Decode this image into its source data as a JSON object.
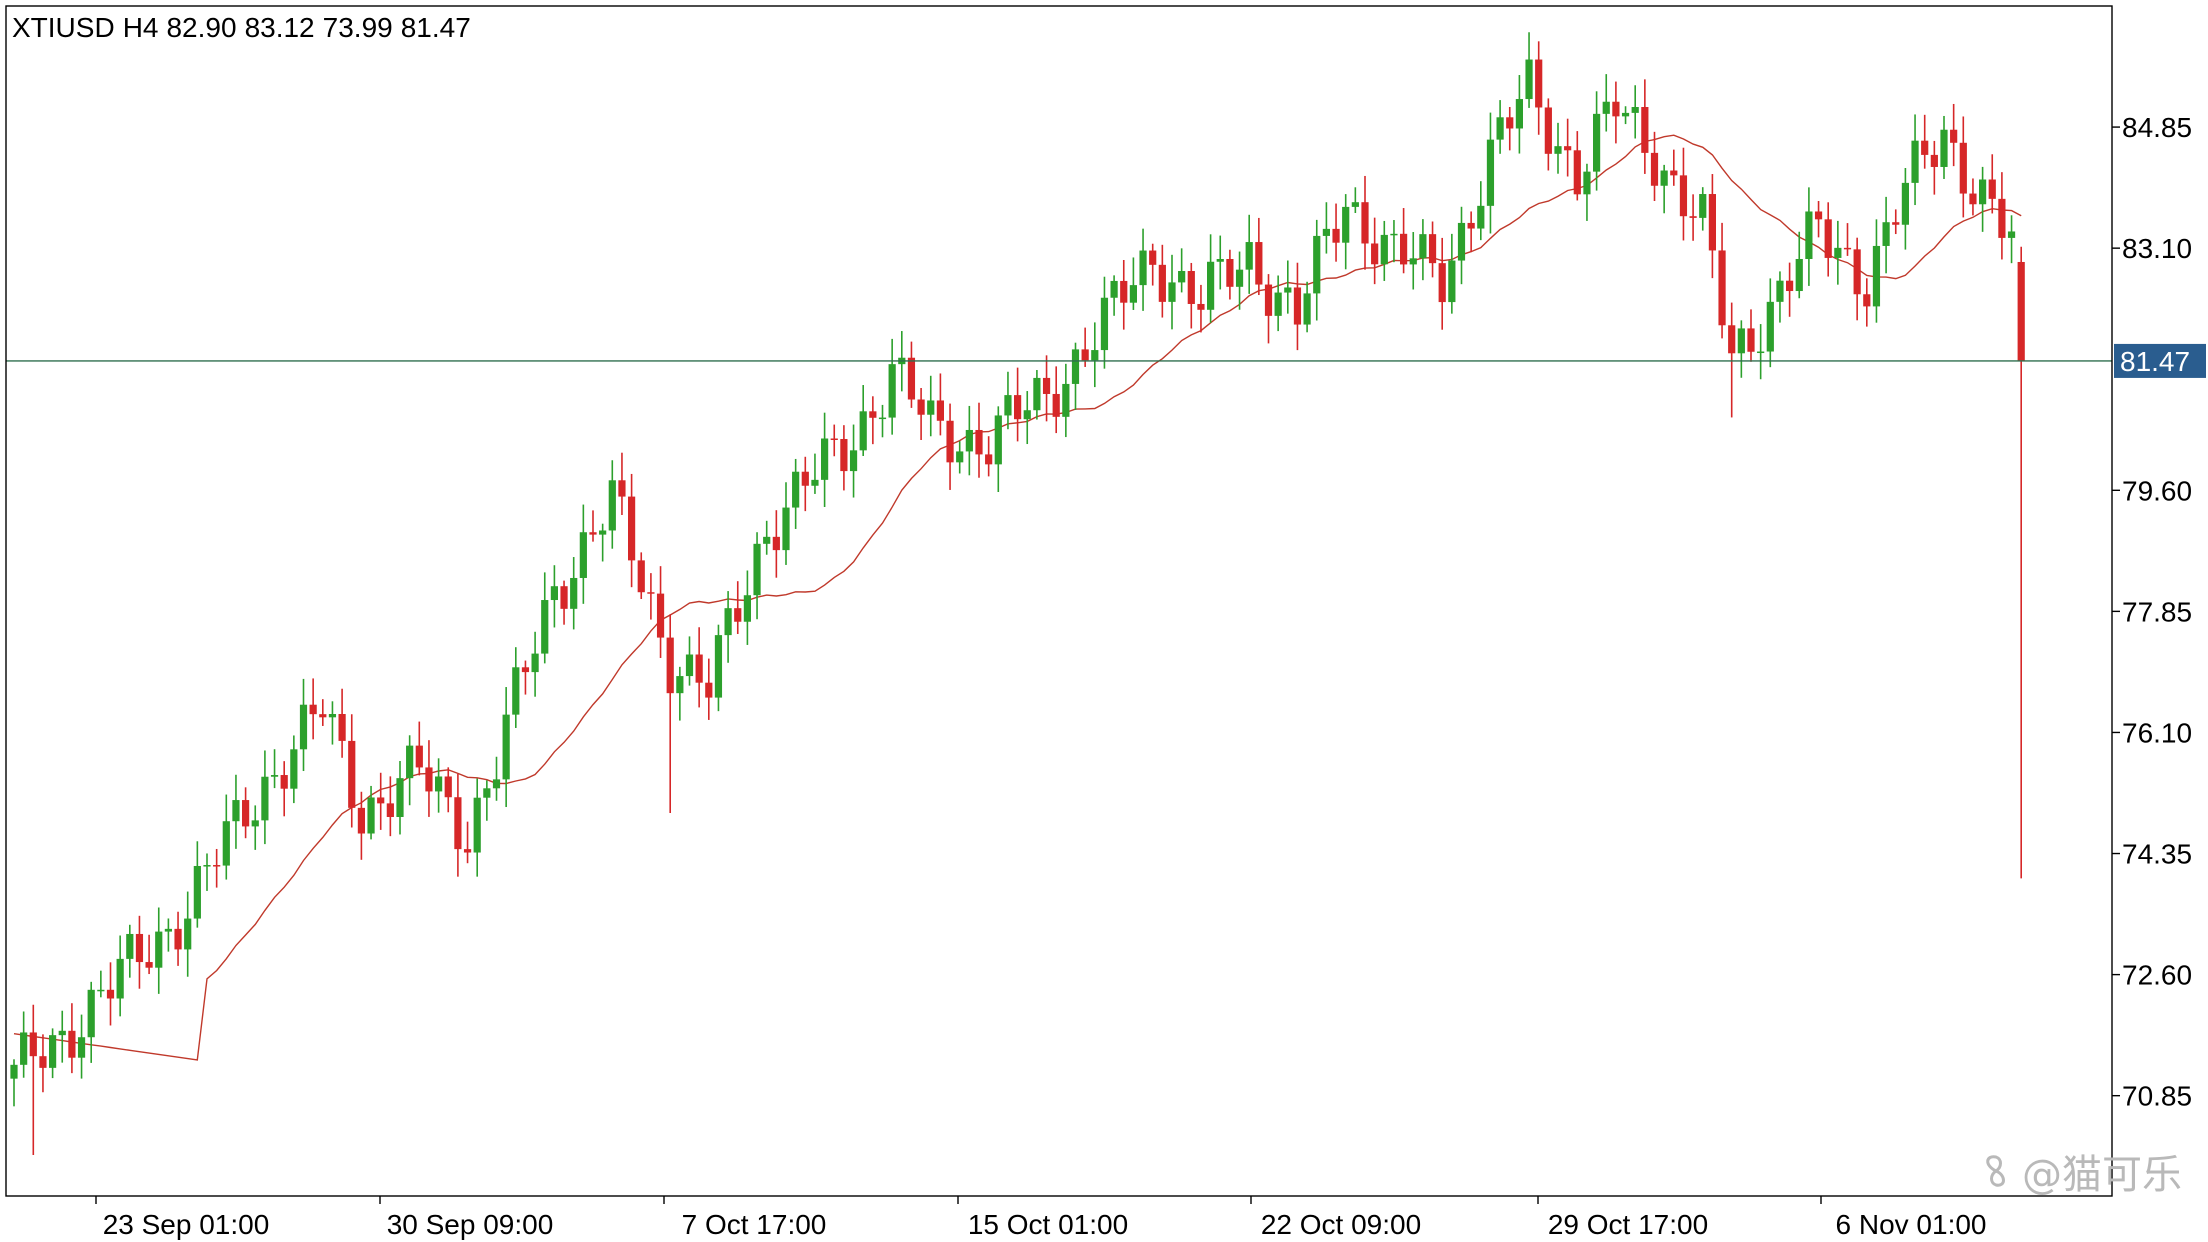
{
  "header": {
    "symbol": "XTIUSD",
    "timeframe": "H4",
    "open": "82.90",
    "high": "83.12",
    "low": "73.99",
    "close": "81.47"
  },
  "watermark": {
    "text": "@猫可乐",
    "icon": "pinwheel-icon"
  },
  "colors": {
    "bull": "#2ca02c",
    "bear": "#d62728",
    "ma": "#c0392b",
    "price_line": "#2e6e4e",
    "price_tag_bg": "#2a5d8f",
    "axis": "#000000",
    "grid": "#e9e9e9"
  },
  "chart_data": {
    "type": "candlestick",
    "symbol": "XTIUSD",
    "timeframe": "H4",
    "ylim": [
      69.4,
      86.6
    ],
    "y_ticks": [
      "84.85",
      "83.10",
      "79.60",
      "77.85",
      "76.10",
      "74.35",
      "72.60",
      "70.85"
    ],
    "x_ticks": [
      "23 Sep 01:00",
      "30 Sep 09:00",
      "7 Oct 17:00",
      "15 Oct 01:00",
      "22 Oct 09:00",
      "29 Oct 17:00",
      "6 Nov 01:00"
    ],
    "last_price": "81.47",
    "last_ohlc": {
      "open": 82.9,
      "high": 83.12,
      "low": 73.99,
      "close": 81.47
    },
    "moving_average_shown": true,
    "grid": false,
    "anchors": [
      [
        0,
        71.1
      ],
      [
        10,
        72.4
      ],
      [
        18,
        73.6
      ],
      [
        26,
        75.4
      ],
      [
        32,
        76.4
      ],
      [
        36,
        75.0
      ],
      [
        42,
        75.5
      ],
      [
        47,
        74.7
      ],
      [
        50,
        75.7
      ],
      [
        56,
        78.2
      ],
      [
        62,
        79.4
      ],
      [
        68,
        77.2
      ],
      [
        72,
        76.7
      ],
      [
        78,
        79.1
      ],
      [
        86,
        80.2
      ],
      [
        91,
        81.3
      ],
      [
        95,
        80.5
      ],
      [
        101,
        80.3
      ],
      [
        107,
        81.0
      ],
      [
        113,
        82.0
      ],
      [
        118,
        83.0
      ],
      [
        123,
        82.3
      ],
      [
        128,
        83.0
      ],
      [
        133,
        82.1
      ],
      [
        138,
        83.8
      ],
      [
        143,
        83.0
      ],
      [
        148,
        82.7
      ],
      [
        153,
        84.4
      ],
      [
        157,
        85.4
      ],
      [
        162,
        84.2
      ],
      [
        166,
        85.1
      ],
      [
        170,
        84.5
      ],
      [
        175,
        83.4
      ],
      [
        178,
        81.5
      ],
      [
        182,
        82.3
      ],
      [
        187,
        83.3
      ],
      [
        192,
        82.7
      ],
      [
        196,
        83.9
      ],
      [
        200,
        84.8
      ],
      [
        205,
        83.6
      ],
      [
        208,
        82.9
      ]
    ]
  }
}
